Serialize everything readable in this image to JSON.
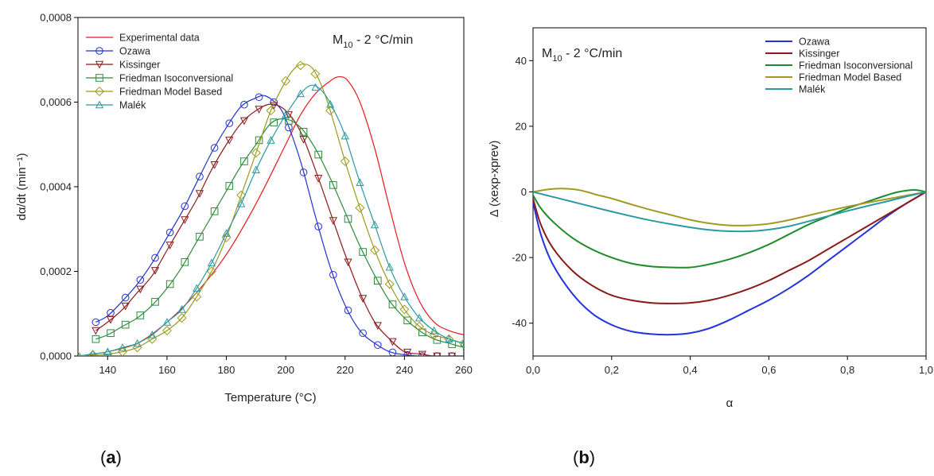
{
  "chart_data": [
    {
      "panel": "a",
      "type": "line",
      "annotation": {
        "main": "M",
        "sub": "10",
        "rest": " - 2 °C/min"
      },
      "xlabel": "Temperature (°C)",
      "ylabel": "dα/dt (min⁻¹)",
      "xlim": [
        130,
        260
      ],
      "ylim": [
        0,
        0.0008
      ],
      "xticks": [
        140,
        160,
        180,
        200,
        220,
        240,
        260
      ],
      "xtick_labels": [
        "140",
        "160",
        "180",
        "200",
        "220",
        "240",
        "260"
      ],
      "yticks": [
        0,
        0.0002,
        0.0004,
        0.0006,
        0.0008
      ],
      "ytick_labels": [
        "0,0000",
        "0,0002",
        "0,0004",
        "0,0006",
        "0,0008"
      ],
      "legend_position": "top-left",
      "series": [
        {
          "name": "Experimental data",
          "color": "#e8191e",
          "marker": "none",
          "x": [
            140,
            150,
            160,
            170,
            180,
            190,
            200,
            205,
            210,
            215,
            218,
            221,
            225,
            230,
            235,
            240,
            245,
            250,
            255,
            260
          ],
          "y": [
            1e-05,
            3e-05,
            8e-05,
            0.00015,
            0.00024,
            0.00036,
            0.0005,
            0.00057,
            0.00062,
            0.00065,
            0.00066,
            0.00065,
            0.0006,
            0.00049,
            0.00035,
            0.00022,
            0.00013,
            8e-05,
            6e-05,
            5e-05
          ]
        },
        {
          "name": "Ozawa",
          "color": "#2233cc",
          "marker": "circle",
          "x": [
            136,
            140,
            145,
            150,
            155,
            160,
            165,
            170,
            175,
            180,
            185,
            190,
            193,
            197,
            200,
            205,
            210,
            215,
            220,
            225,
            230,
            235,
            240,
            245,
            250,
            255,
            260
          ],
          "y": [
            8e-05,
            9.5e-05,
            0.00013,
            0.00017,
            0.00022,
            0.00028,
            0.00034,
            0.00041,
            0.00048,
            0.00054,
            0.00059,
            0.00061,
            0.000615,
            0.000595,
            0.00056,
            0.00046,
            0.00033,
            0.00021,
            0.00012,
            6e-05,
            3e-05,
            1e-05,
            3e-06,
            0,
            0,
            0,
            0
          ]
        },
        {
          "name": "Kissinger",
          "color": "#8b1a1a",
          "marker": "triangle-down",
          "x": [
            136,
            140,
            145,
            150,
            155,
            160,
            165,
            170,
            175,
            180,
            185,
            190,
            195,
            200,
            205,
            210,
            215,
            220,
            225,
            230,
            235,
            240,
            245,
            250,
            255,
            260
          ],
          "y": [
            6e-05,
            8e-05,
            0.00011,
            0.00015,
            0.00019,
            0.00025,
            0.00031,
            0.00037,
            0.00044,
            0.0005,
            0.00055,
            0.00058,
            0.000595,
            0.00058,
            0.00053,
            0.00044,
            0.00034,
            0.00024,
            0.00015,
            8e-05,
            4e-05,
            1e-05,
            5e-06,
            0,
            0,
            0
          ]
        },
        {
          "name": "Friedman Isoconversional",
          "color": "#2e8b3c",
          "marker": "square",
          "x": [
            136,
            140,
            145,
            150,
            155,
            160,
            165,
            170,
            175,
            180,
            185,
            190,
            195,
            200,
            205,
            210,
            215,
            220,
            225,
            230,
            235,
            240,
            245,
            250,
            255,
            260
          ],
          "y": [
            4e-05,
            5e-05,
            7e-05,
            9e-05,
            0.00012,
            0.00016,
            0.00021,
            0.00027,
            0.00033,
            0.00039,
            0.00045,
            0.0005,
            0.00055,
            0.00056,
            0.00054,
            0.00049,
            0.00042,
            0.00034,
            0.00026,
            0.00019,
            0.00013,
            9e-05,
            6e-05,
            4e-05,
            3e-05,
            2e-05
          ]
        },
        {
          "name": "Friedman Model Based",
          "color": "#9c9a1a",
          "marker": "diamond",
          "x": [
            130,
            140,
            145,
            150,
            155,
            160,
            165,
            170,
            175,
            180,
            185,
            190,
            195,
            200,
            203,
            206,
            209,
            212,
            215,
            220,
            225,
            230,
            235,
            240,
            245,
            250,
            255,
            260
          ],
          "y": [
            0,
            5e-06,
            1e-05,
            2e-05,
            4e-05,
            6e-05,
            9e-05,
            0.00014,
            0.0002,
            0.00028,
            0.00038,
            0.00048,
            0.00058,
            0.00065,
            0.00068,
            0.00069,
            0.00068,
            0.00064,
            0.00058,
            0.00046,
            0.00035,
            0.00025,
            0.00017,
            0.00011,
            7e-05,
            5e-05,
            4e-05,
            3e-05
          ]
        },
        {
          "name": "Malék",
          "color": "#2a9aa0",
          "marker": "triangle-up",
          "x": [
            130,
            140,
            145,
            150,
            155,
            160,
            165,
            170,
            175,
            180,
            185,
            190,
            195,
            200,
            205,
            209,
            213,
            217,
            220,
            225,
            230,
            235,
            240,
            245,
            250,
            255,
            260
          ],
          "y": [
            0,
            1e-05,
            2e-05,
            3e-05,
            5e-05,
            8e-05,
            0.00011,
            0.00016,
            0.00022,
            0.00029,
            0.00036,
            0.00044,
            0.00051,
            0.00057,
            0.00062,
            0.00064,
            0.00062,
            0.00057,
            0.00052,
            0.00041,
            0.00031,
            0.00021,
            0.00014,
            9e-05,
            6e-05,
            4e-05,
            3e-05
          ]
        }
      ]
    },
    {
      "panel": "b",
      "type": "line",
      "annotation": {
        "main": "M",
        "sub": "10",
        "rest": " - 2 °C/min"
      },
      "xlabel": "α",
      "ylabel": "Δ (xexp-xprev)",
      "xlim": [
        0,
        1
      ],
      "ylim": [
        -50,
        50
      ],
      "xticks": [
        0,
        0.2,
        0.4,
        0.6,
        0.8,
        1.0
      ],
      "xtick_labels": [
        "0,0",
        "0,2",
        "0,4",
        "0,6",
        "0,8",
        "1,0"
      ],
      "yticks": [
        -40,
        -20,
        0,
        20,
        40
      ],
      "ytick_labels": [
        "-40",
        "-20",
        "0",
        "20",
        "40"
      ],
      "legend_position": "top-right",
      "series": [
        {
          "name": "Ozawa",
          "color": "#2233dd",
          "x": [
            0,
            0.02,
            0.05,
            0.1,
            0.15,
            0.2,
            0.25,
            0.3,
            0.35,
            0.4,
            0.45,
            0.5,
            0.55,
            0.6,
            0.65,
            0.7,
            0.75,
            0.8,
            0.85,
            0.9,
            0.95,
            1.0
          ],
          "y": [
            -3,
            -13,
            -22,
            -31,
            -37,
            -40.5,
            -42.5,
            -43.3,
            -43.5,
            -43,
            -41.5,
            -39,
            -36,
            -33,
            -29.5,
            -25.5,
            -21,
            -16.5,
            -12,
            -7.5,
            -3.5,
            0
          ]
        },
        {
          "name": "Kissinger",
          "color": "#8b1a1a",
          "x": [
            0,
            0.02,
            0.05,
            0.1,
            0.15,
            0.2,
            0.25,
            0.3,
            0.35,
            0.4,
            0.45,
            0.5,
            0.55,
            0.6,
            0.65,
            0.7,
            0.75,
            0.8,
            0.85,
            0.9,
            0.95,
            1.0
          ],
          "y": [
            -2,
            -10,
            -17,
            -24,
            -28.5,
            -31.5,
            -33,
            -33.8,
            -34,
            -33.8,
            -33,
            -31.5,
            -29.5,
            -27,
            -24,
            -21,
            -17.5,
            -14,
            -10.5,
            -7,
            -3.5,
            0
          ]
        },
        {
          "name": "Friedman Isoconversional",
          "color": "#1f8a2a",
          "x": [
            0,
            0.02,
            0.05,
            0.1,
            0.15,
            0.2,
            0.25,
            0.3,
            0.35,
            0.4,
            0.45,
            0.5,
            0.55,
            0.6,
            0.65,
            0.7,
            0.75,
            0.8,
            0.85,
            0.9,
            0.93,
            0.97,
            1.0
          ],
          "y": [
            -1,
            -5,
            -9,
            -14,
            -17.5,
            -20,
            -21.8,
            -22.7,
            -23,
            -23,
            -22,
            -20.5,
            -18.5,
            -16,
            -13,
            -10,
            -7.5,
            -5,
            -3,
            -1,
            0,
            0.6,
            0
          ]
        },
        {
          "name": "Friedman Model Based",
          "color": "#a09a22",
          "x": [
            0,
            0.04,
            0.08,
            0.12,
            0.16,
            0.2,
            0.25,
            0.3,
            0.35,
            0.4,
            0.45,
            0.5,
            0.55,
            0.6,
            0.65,
            0.7,
            0.75,
            0.8,
            0.85,
            0.9,
            0.95,
            1.0
          ],
          "y": [
            0,
            0.8,
            1,
            0.5,
            -0.8,
            -2,
            -3.8,
            -5.5,
            -7,
            -8.5,
            -9.6,
            -10.2,
            -10.2,
            -9.7,
            -8.6,
            -7.2,
            -5.8,
            -4.5,
            -3.3,
            -2.2,
            -1.1,
            0
          ]
        },
        {
          "name": "Malék",
          "color": "#2a9aa0",
          "x": [
            0,
            0.05,
            0.1,
            0.15,
            0.2,
            0.25,
            0.3,
            0.35,
            0.4,
            0.45,
            0.5,
            0.55,
            0.6,
            0.65,
            0.7,
            0.75,
            0.8,
            0.85,
            0.9,
            0.95,
            1.0
          ],
          "y": [
            0,
            -1.5,
            -3,
            -4.5,
            -6,
            -7.4,
            -8.7,
            -9.8,
            -10.8,
            -11.6,
            -12,
            -12,
            -11.5,
            -10.5,
            -9,
            -7.4,
            -5.8,
            -4.3,
            -2.9,
            -1.4,
            0
          ]
        }
      ]
    }
  ],
  "panel_labels": {
    "a": "a",
    "b": "b"
  }
}
